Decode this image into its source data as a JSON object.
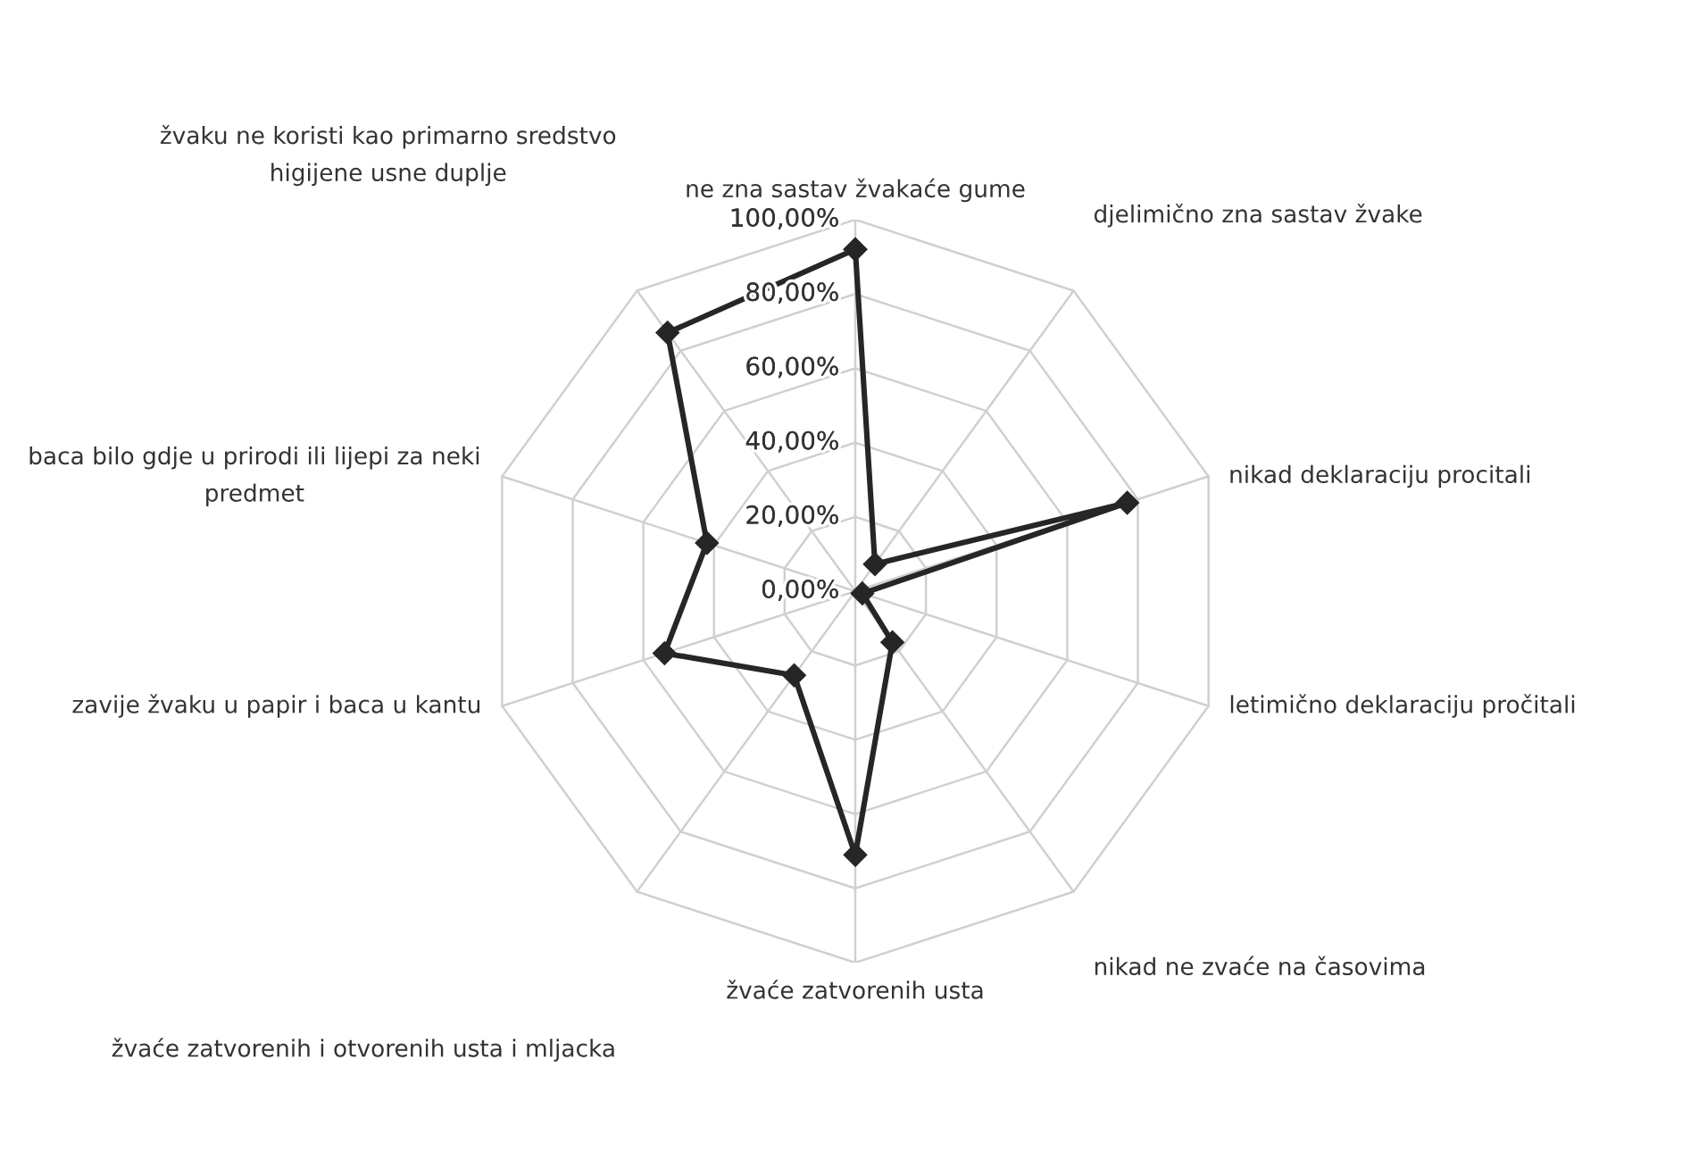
{
  "chart_data": {
    "type": "radar",
    "categories": [
      "ne zna sastav žvakaće gume",
      "djelimično zna sastav žvake",
      "nikad deklaraciju procitali",
      "letimično deklaraciju pročitali",
      "nikad ne zvaće na časovima",
      "žvaće zatvorenih usta",
      "žvaće zatvorenih i otvorenih usta i mljacka",
      "zavije žvaku u papir i baca u kantu",
      "baca bilo gdje u prirodi ili lijepi za neki\npredmet",
      "žvaku ne koristi kao primarno sredstvo\nhigijene usne duplje"
    ],
    "series": [
      {
        "color": "#262626",
        "values": [
          92,
          9,
          77,
          2,
          17,
          71,
          28,
          54,
          42,
          86
        ]
      }
    ],
    "ylim": [
      0,
      100
    ],
    "yticks": [
      {
        "value": 0,
        "label": "0,00%"
      },
      {
        "value": 20,
        "label": "20,00%"
      },
      {
        "value": 40,
        "label": "40,00%"
      },
      {
        "value": 60,
        "label": "60,00%"
      },
      {
        "value": 80,
        "label": "80,00%"
      },
      {
        "value": 100,
        "label": "100,00%"
      }
    ],
    "grid": true,
    "marker": "diamond",
    "line_style": "solid"
  }
}
